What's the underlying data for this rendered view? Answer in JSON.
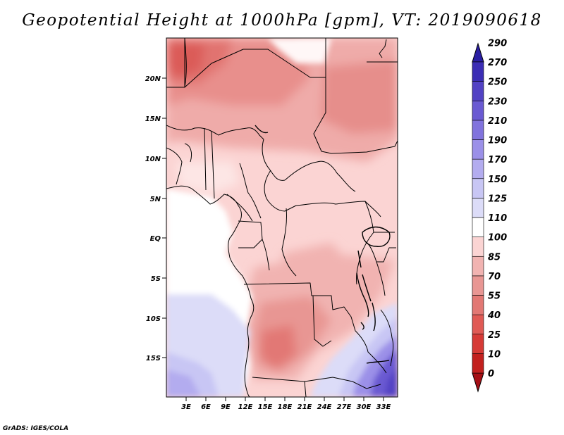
{
  "title": "Geopotential Height at 1000hPa [gpm], VT: 2019090618",
  "credit": "GrADS: IGES/COLA",
  "map": {
    "lat_labels": [
      "20N",
      "15N",
      "10N",
      "5N",
      "EQ",
      "5S",
      "10S",
      "15S"
    ],
    "lon_labels": [
      "3E",
      "6E",
      "9E",
      "12E",
      "15E",
      "18E",
      "21E",
      "24E",
      "27E",
      "30E",
      "33E"
    ]
  },
  "chart_data": {
    "type": "filled-contour map",
    "variable": "Geopotential Height at 1000hPa",
    "units": "gpm",
    "valid_time": "2019090618",
    "levels": [
      0,
      10,
      25,
      40,
      55,
      70,
      85,
      100,
      110,
      125,
      150,
      170,
      190,
      210,
      230,
      250,
      270,
      290
    ],
    "level_labels": [
      "0",
      "10",
      "25",
      "40",
      "55",
      "70",
      "85",
      "100",
      "110",
      "125",
      "150",
      "170",
      "190",
      "210",
      "230",
      "250",
      "270",
      "290"
    ],
    "colors": [
      "#a50f15",
      "#c2201e",
      "#d63a36",
      "#e05a55",
      "#e27874",
      "#e89693",
      "#f1b3b1",
      "#fbd4d3",
      "#ffffff",
      "#dcdcf8",
      "#c8c6f4",
      "#b3acef",
      "#9b90e8",
      "#8173dd",
      "#6a5ad2",
      "#5242c4",
      "#3b2db5",
      "#2a1ea3"
    ],
    "lon_range_deg_east": [
      0,
      35
    ],
    "lat_range_deg": [
      -20,
      24
    ]
  }
}
